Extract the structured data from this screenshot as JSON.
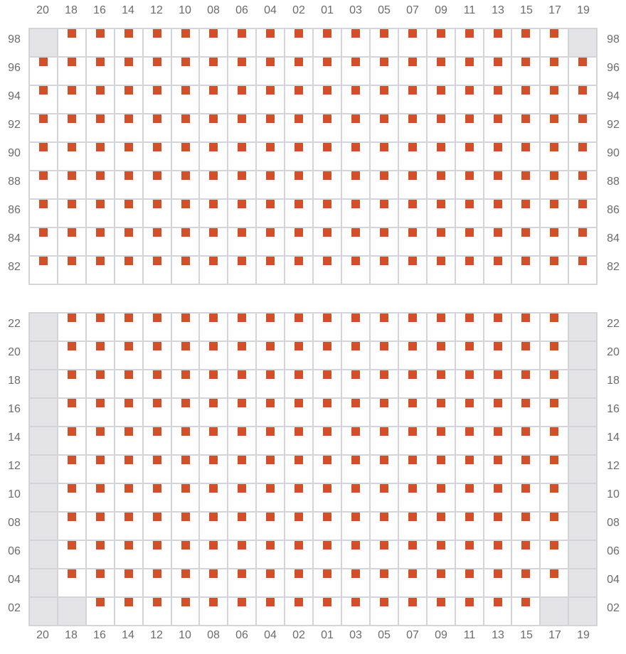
{
  "columns": [
    "20",
    "18",
    "16",
    "14",
    "12",
    "10",
    "08",
    "06",
    "04",
    "02",
    "01",
    "03",
    "05",
    "07",
    "09",
    "11",
    "13",
    "15",
    "17",
    "19"
  ],
  "colors": {
    "seat": "#d0502a",
    "unavailable": "#e4e4e7",
    "grid": "#d4d4d8"
  },
  "blocks": [
    {
      "rows": [
        "98",
        "96",
        "94",
        "92",
        "90",
        "88",
        "86",
        "84",
        "82"
      ],
      "unavailable": {
        "98": [
          "20",
          "19"
        ]
      }
    },
    {
      "rows": [
        "22",
        "20",
        "18",
        "16",
        "14",
        "12",
        "10",
        "08",
        "06",
        "04",
        "02"
      ],
      "unavailable": {
        "22": [
          "20",
          "19"
        ],
        "20": [
          "20",
          "19"
        ],
        "18": [
          "20",
          "19"
        ],
        "16": [
          "20",
          "19"
        ],
        "14": [
          "20",
          "19"
        ],
        "12": [
          "20",
          "19"
        ],
        "10": [
          "20",
          "19"
        ],
        "08": [
          "20",
          "19"
        ],
        "06": [
          "20",
          "19"
        ],
        "04": [
          "20",
          "19"
        ],
        "02": [
          "20",
          "18",
          "17",
          "19"
        ]
      }
    }
  ]
}
